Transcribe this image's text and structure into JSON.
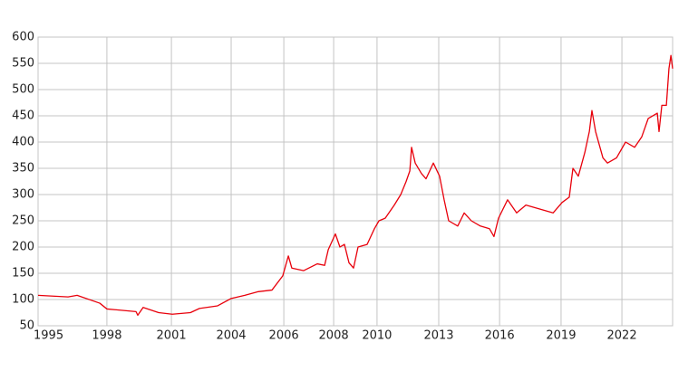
{
  "chart_data": {
    "type": "line",
    "x": [
      1995.0,
      1996.39,
      1996.81,
      1997.86,
      1998.19,
      1999.54,
      1999.62,
      1999.87,
      2000.59,
      2001.22,
      2002.06,
      2002.48,
      2003.32,
      2003.95,
      2004.58,
      2005.21,
      2005.84,
      2006.34,
      2006.6,
      2006.76,
      2007.31,
      2007.94,
      2008.28,
      2008.45,
      2008.78,
      2008.99,
      2009.2,
      2009.41,
      2009.62,
      2009.83,
      2010.25,
      2010.59,
      2010.8,
      2011.09,
      2011.51,
      2011.81,
      2012.06,
      2012.23,
      2012.31,
      2012.48,
      2012.77,
      2012.98,
      2013.32,
      2013.61,
      2013.82,
      2014.03,
      2014.45,
      2014.75,
      2015.08,
      2015.5,
      2015.92,
      2016.13,
      2016.34,
      2016.76,
      2017.18,
      2017.61,
      2018.45,
      2018.87,
      2019.29,
      2019.62,
      2019.79,
      2020.04,
      2020.34,
      2020.55,
      2020.67,
      2020.84,
      2021.18,
      2021.39,
      2021.81,
      2022.23,
      2022.65,
      2022.98,
      2023.28,
      2023.7,
      2023.78,
      2023.91,
      2024.12,
      2024.24,
      2024.33,
      2024.41
    ],
    "values": [
      108,
      105,
      108,
      93,
      82,
      77,
      70,
      85,
      75,
      72,
      75,
      83,
      88,
      102,
      108,
      115,
      118,
      145,
      183,
      160,
      155,
      168,
      165,
      195,
      225,
      200,
      205,
      170,
      160,
      200,
      205,
      235,
      250,
      255,
      280,
      300,
      325,
      345,
      390,
      360,
      340,
      330,
      360,
      335,
      290,
      250,
      240,
      265,
      250,
      240,
      235,
      220,
      255,
      290,
      265,
      280,
      270,
      265,
      285,
      295,
      350,
      335,
      380,
      420,
      460,
      420,
      370,
      360,
      370,
      400,
      390,
      410,
      445,
      455,
      420,
      470,
      470,
      540,
      565,
      540
    ],
    "color": "#e8000b",
    "xlim": [
      1995.0,
      2024.41
    ],
    "xticks": [
      1995,
      {
        "value": 1998.19,
        "label": "1998"
      },
      {
        "value": 2001.18,
        "label": "2001"
      },
      {
        "value": 2003.95,
        "label": "2004"
      },
      {
        "value": 2006.39,
        "label": "2006"
      },
      {
        "value": 2008.7,
        "label": "2008"
      },
      {
        "value": 2010.71,
        "label": "2010"
      },
      {
        "value": 2013.57,
        "label": "2013"
      },
      {
        "value": 2016.39,
        "label": "2016"
      },
      {
        "value": 2019.24,
        "label": "2019"
      },
      {
        "value": 2022.06,
        "label": "2022"
      }
    ],
    "ylim": [
      50,
      600
    ],
    "yticks": [
      50,
      100,
      150,
      200,
      250,
      300,
      350,
      400,
      450,
      500,
      550,
      600
    ],
    "grid": true
  }
}
